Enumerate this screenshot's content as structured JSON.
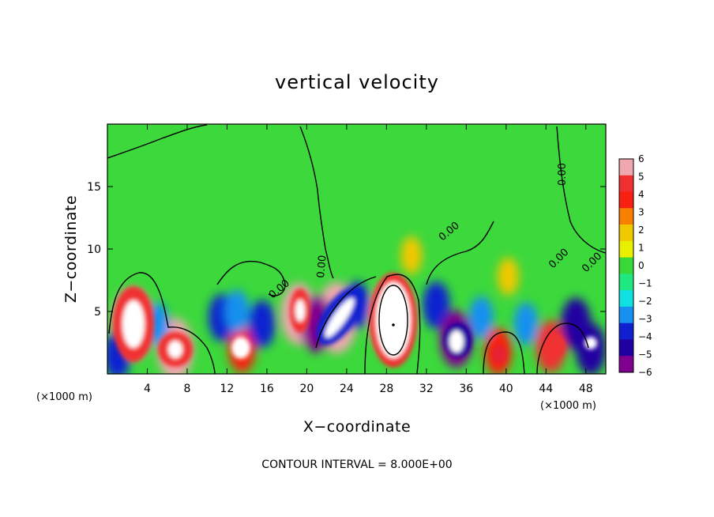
{
  "chart_data": {
    "type": "heatmap",
    "title": "vertical velocity",
    "xlabel": "X−coordinate",
    "ylabel": "Z−coordinate",
    "x_unit": "(×1000 m)",
    "z_unit": "(×1000 m)",
    "xlim": [
      0,
      50
    ],
    "zlim": [
      0,
      20
    ],
    "x_ticks": [
      4,
      8,
      12,
      16,
      20,
      24,
      28,
      32,
      36,
      40,
      44,
      48
    ],
    "x_tick_labels": [
      "4",
      "8",
      "12",
      "16",
      "20",
      "24",
      "28",
      "32",
      "36",
      "40",
      "44",
      "48"
    ],
    "z_ticks": [
      5,
      10,
      15
    ],
    "z_tick_labels": [
      "5",
      "10",
      "15"
    ],
    "colorbar": {
      "levels": [
        6,
        5,
        4,
        3,
        2,
        1,
        0,
        -1,
        -2,
        -3,
        -4,
        -5,
        -6
      ],
      "labels": [
        "6",
        "5",
        "4",
        "3",
        "2",
        "1",
        "0",
        "−1",
        "−2",
        "−3",
        "−4",
        "−5",
        "−6"
      ],
      "colors": [
        "#f0a8b0",
        "#f03030",
        "#f82010",
        "#f88000",
        "#f0c800",
        "#e8f000",
        "#38d838",
        "#20e880",
        "#10e0e0",
        "#1890f0",
        "#1020d0",
        "#2000a0",
        "#800090"
      ],
      "min": -6,
      "max": 6
    },
    "contour_interval_text": "CONTOUR INTERVAL = 8.000E+00",
    "contour_labels": [
      "0.00",
      "0.00",
      "0.00",
      "0.00",
      "0.00",
      "0.00"
    ],
    "background_value": 0.3,
    "cells": [
      {
        "x": 2.5,
        "z": 4.0,
        "value": 9
      },
      {
        "x": 6.8,
        "z": 2.0,
        "value": 7
      },
      {
        "x": 13.5,
        "z": 2.0,
        "value": 4
      },
      {
        "x": 19.2,
        "z": 4.8,
        "value": 7
      },
      {
        "x": 23.0,
        "z": 4.5,
        "value": 9
      },
      {
        "x": 28.5,
        "z": 4.5,
        "value": 10
      },
      {
        "x": 30.5,
        "z": 9.5,
        "value": 2
      },
      {
        "x": 39.2,
        "z": 1.8,
        "value": 4
      },
      {
        "x": 40.2,
        "z": 7.8,
        "value": 2
      },
      {
        "x": 44.5,
        "z": 2.2,
        "value": 5
      },
      {
        "x": 1.0,
        "z": 1.5,
        "value": -4
      },
      {
        "x": 5.0,
        "z": 4.0,
        "value": -3
      },
      {
        "x": 11.5,
        "z": 4.5,
        "value": -4
      },
      {
        "x": 13.0,
        "z": 5.0,
        "value": -3
      },
      {
        "x": 15.5,
        "z": 4.0,
        "value": -4
      },
      {
        "x": 21.0,
        "z": 4.0,
        "value": -6
      },
      {
        "x": 25.0,
        "z": 5.5,
        "value": -4
      },
      {
        "x": 33.0,
        "z": 5.5,
        "value": -4
      },
      {
        "x": 35.0,
        "z": 2.8,
        "value": -6
      },
      {
        "x": 37.5,
        "z": 4.5,
        "value": -3
      },
      {
        "x": 42.0,
        "z": 4.0,
        "value": -3
      },
      {
        "x": 47.0,
        "z": 4.0,
        "value": -5
      },
      {
        "x": 48.5,
        "z": 2.0,
        "value": -5
      }
    ]
  }
}
